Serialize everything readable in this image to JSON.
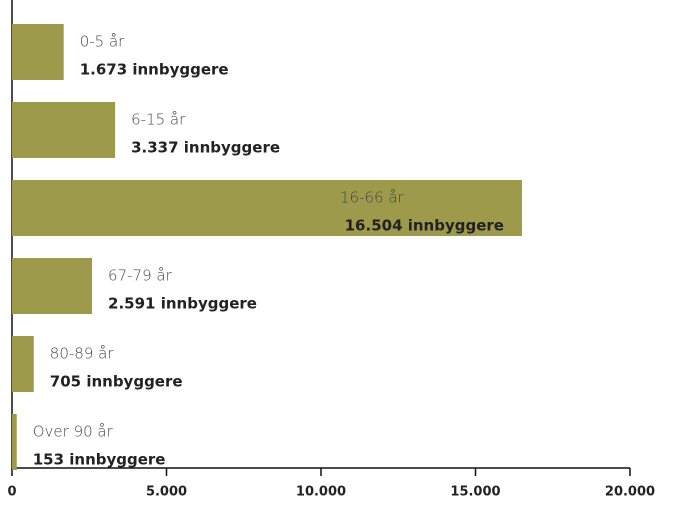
{
  "chart_data": {
    "type": "bar",
    "orientation": "horizontal",
    "categories": [
      "0-5 år",
      "6-15 år",
      "16-66 år",
      "67-79 år",
      "80-89 år",
      "Over 90 år"
    ],
    "values": [
      1673,
      3337,
      16504,
      2591,
      705,
      153
    ],
    "value_labels": [
      "1.673 innbyggere",
      "3.337 innbyggere",
      "16.504 innbyggere",
      "2.591 innbyggere",
      "705 innbyggere",
      "153 innbyggere"
    ],
    "color": "#9e9a4c",
    "xlim": [
      0,
      20000
    ],
    "xticks": [
      0,
      {
        "value": 5000,
        "label": "5.000"
      },
      {
        "value": 10000,
        "label": "10.000"
      },
      {
        "value": 15000,
        "label": "15.000"
      },
      {
        "value": 20000,
        "label": "20.000"
      }
    ],
    "grid": false
  }
}
